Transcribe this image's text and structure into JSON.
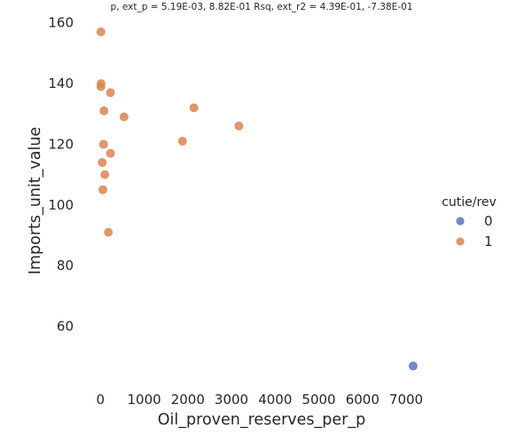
{
  "chart_data": {
    "type": "scatter",
    "title": "p, ext_p = 5.19E-03, 8.82E-01 Rsq, ext_r2 = 4.39E-01, -7.38E-01",
    "xlabel": "Oil_proven_reserves_per_p",
    "ylabel": "Imports_unit_value",
    "xlim": [
      -250,
      7650
    ],
    "ylim": [
      40,
      164
    ],
    "xticks": [
      0,
      1000,
      2000,
      3000,
      4000,
      5000,
      6000,
      7000
    ],
    "yticks": [
      60,
      80,
      100,
      120,
      140,
      160
    ],
    "grid": false,
    "legend": {
      "title": "cutie/rev",
      "placement": "right",
      "entries": [
        {
          "label": "0",
          "color": "#5875b4"
        },
        {
          "label": "1",
          "color": "#dd8452"
        }
      ]
    },
    "series": [
      {
        "name": "0",
        "color": "#5875b4",
        "points": [
          {
            "x": 7160,
            "y": 47
          }
        ]
      },
      {
        "name": "1",
        "color": "#dd8452",
        "points": [
          {
            "x": 10,
            "y": 157
          },
          {
            "x": 15,
            "y": 140
          },
          {
            "x": 10,
            "y": 139
          },
          {
            "x": 230,
            "y": 137
          },
          {
            "x": 80,
            "y": 131
          },
          {
            "x": 540,
            "y": 129
          },
          {
            "x": 2140,
            "y": 132
          },
          {
            "x": 3170,
            "y": 126
          },
          {
            "x": 1880,
            "y": 121
          },
          {
            "x": 70,
            "y": 120
          },
          {
            "x": 230,
            "y": 117
          },
          {
            "x": 40,
            "y": 114
          },
          {
            "x": 100,
            "y": 110
          },
          {
            "x": 55,
            "y": 105
          },
          {
            "x": 180,
            "y": 91
          }
        ]
      }
    ]
  }
}
